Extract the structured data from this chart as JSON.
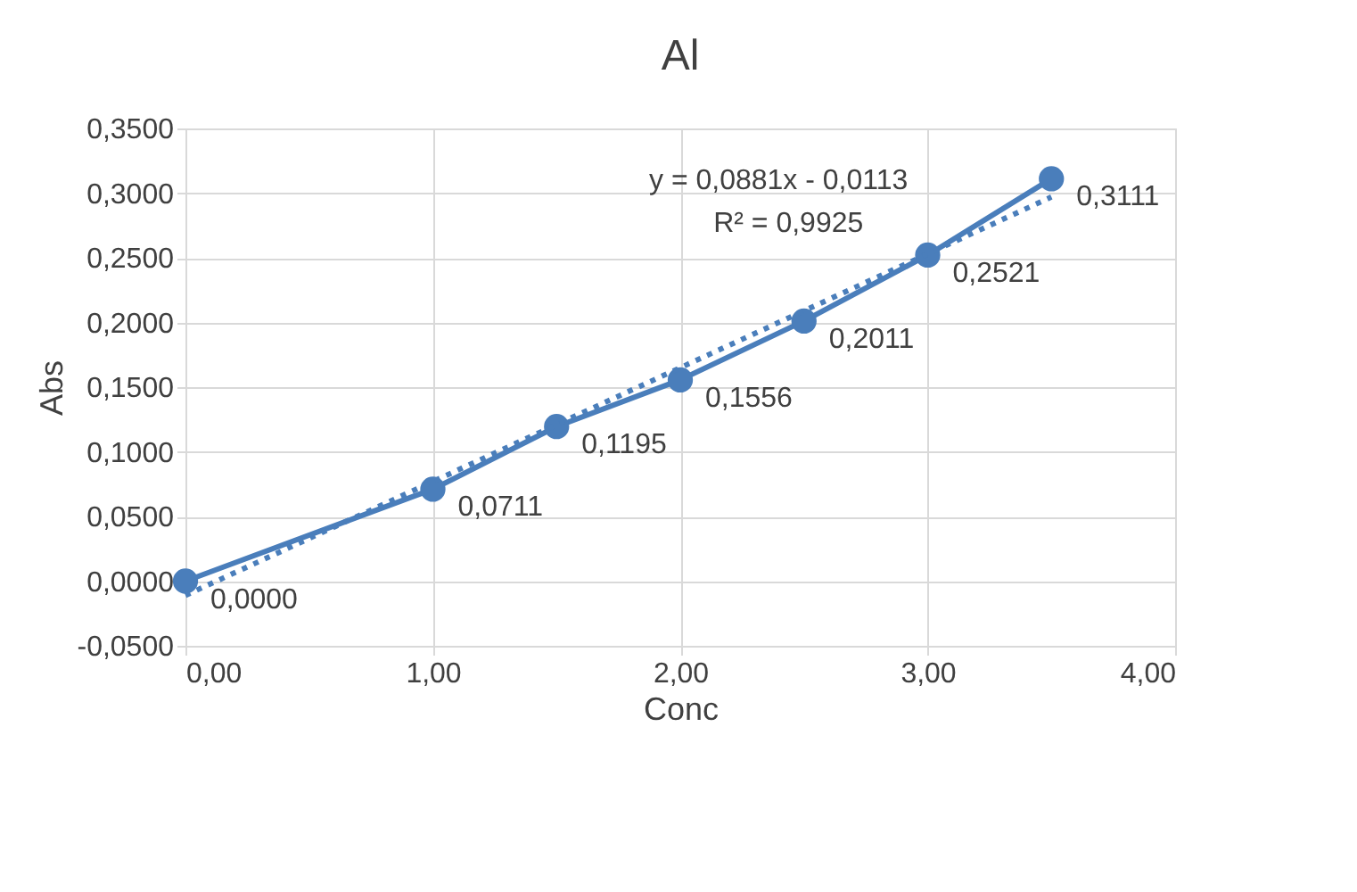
{
  "chart_data": {
    "type": "line",
    "title": "Al",
    "xlabel": "Conc",
    "ylabel": "Abs",
    "x": [
      0,
      1,
      1.5,
      2,
      2.5,
      3,
      3.5
    ],
    "series": [
      {
        "color": "#4a7ebb",
        "values": [
          0.0,
          0.0711,
          0.1195,
          0.1556,
          0.2011,
          0.2521,
          0.3111
        ],
        "marker": "circle",
        "line_style": "solid",
        "value_labels": [
          "0,0000",
          "0,0711",
          "0,1195",
          "0,1556",
          "0,2011",
          "0,2521",
          "0,3111"
        ]
      },
      {
        "type": "line",
        "color": "#4a7ebb",
        "x": [
          0,
          3.5
        ],
        "values": [
          -0.011,
          0.297
        ],
        "marker": "none",
        "line_style": "dotted"
      }
    ],
    "xlim": [
      0,
      4
    ],
    "xticks": [
      {
        "value": 0,
        "label": "0,00"
      },
      {
        "value": 1,
        "label": "1,00"
      },
      {
        "value": 2,
        "label": "2,00"
      },
      {
        "value": 3,
        "label": "3,00"
      },
      {
        "value": 4,
        "label": "4,00"
      }
    ],
    "ylim": [
      -0.05,
      0.35
    ],
    "yticks": [
      {
        "value": -0.05,
        "label": "-0,0500"
      },
      {
        "value": 0,
        "label": "0,0000"
      },
      {
        "value": 0.05,
        "label": "0,0500"
      },
      {
        "value": 0.1,
        "label": "0,1000"
      },
      {
        "value": 0.15,
        "label": "0,1500"
      },
      {
        "value": 0.2,
        "label": "0,2000"
      },
      {
        "value": 0.25,
        "label": "0,2500"
      },
      {
        "value": 0.3,
        "label": "0,3000"
      },
      {
        "value": 0.35,
        "label": "0,3500"
      }
    ],
    "grid": true,
    "annotations": [
      "y = 0,0881x - 0,0113",
      "R² = 0,9925"
    ]
  }
}
